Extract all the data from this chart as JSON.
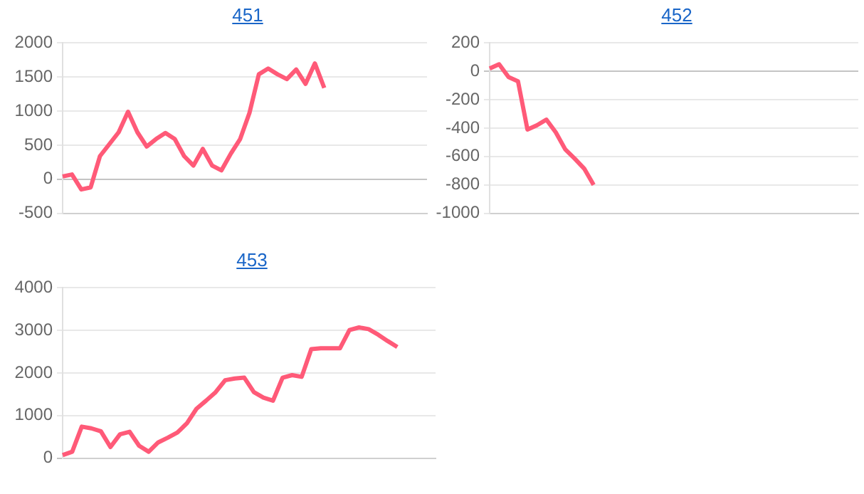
{
  "chart_data": [
    {
      "type": "line",
      "title": "451",
      "categories": [
        null,
        null,
        null,
        null,
        null,
        null,
        null,
        null,
        null,
        null,
        null,
        null,
        null,
        null,
        null,
        null,
        null,
        null,
        null,
        null,
        null,
        null,
        null,
        null,
        null,
        null,
        null,
        null,
        null,
        null,
        null,
        null,
        null,
        null,
        null,
        null,
        null,
        null,
        null,
        null
      ],
      "values": [
        40,
        70,
        -150,
        -120,
        340,
        515,
        690,
        990,
        690,
        480,
        590,
        680,
        590,
        340,
        200,
        445,
        200,
        130,
        375,
        590,
        975,
        1540,
        1625,
        1540,
        1470,
        1610,
        1400,
        1700,
        1340,
        null,
        null,
        null,
        null,
        null,
        null,
        null,
        null,
        null,
        null,
        null
      ],
      "color": "#ff5a78",
      "ylim": [
        -500,
        2000
      ],
      "yticks": [
        -500,
        0,
        500,
        1000,
        1500,
        2000
      ],
      "grid": "y",
      "tick_labels": "y",
      "marker": "none"
    },
    {
      "type": "line",
      "title": "452",
      "categories": [
        null,
        null,
        null,
        null,
        null,
        null,
        null,
        null,
        null,
        null,
        null,
        null,
        null,
        null,
        null,
        null,
        null,
        null,
        null,
        null,
        null,
        null,
        null,
        null,
        null,
        null,
        null,
        null,
        null,
        null,
        null,
        null,
        null,
        null,
        null,
        null,
        null,
        null,
        null,
        null
      ],
      "values": [
        20,
        50,
        -40,
        -70,
        -410,
        -380,
        -340,
        -430,
        -550,
        -615,
        -685,
        -800,
        null,
        null,
        null,
        null,
        null,
        null,
        null,
        null,
        null,
        null,
        null,
        null,
        null,
        null,
        null,
        null,
        null,
        null,
        null,
        null,
        null,
        null,
        null,
        null,
        null,
        null,
        null,
        null
      ],
      "color": "#ff5a78",
      "ylim": [
        -1000,
        200
      ],
      "yticks": [
        -1000,
        -800,
        -600,
        -400,
        -200,
        0,
        200
      ],
      "grid": "y",
      "tick_labels": "y",
      "marker": "none"
    },
    {
      "type": "line",
      "title": "453",
      "categories": [
        null,
        null,
        null,
        null,
        null,
        null,
        null,
        null,
        null,
        null,
        null,
        null,
        null,
        null,
        null,
        null,
        null,
        null,
        null,
        null,
        null,
        null,
        null,
        null,
        null,
        null,
        null,
        null,
        null,
        null,
        null,
        null,
        null,
        null,
        null,
        null,
        null,
        null,
        null,
        null
      ],
      "values": [
        70,
        150,
        740,
        700,
        630,
        260,
        560,
        620,
        290,
        150,
        370,
        480,
        600,
        820,
        1160,
        1350,
        1550,
        1830,
        1870,
        1890,
        1550,
        1420,
        1350,
        1890,
        1950,
        1910,
        2560,
        2580,
        2580,
        2580,
        3010,
        3070,
        3030,
        2900,
        2750,
        2610,
        null,
        null,
        null,
        null
      ],
      "color": "#ff5a78",
      "ylim": [
        0,
        4000
      ],
      "yticks": [
        0,
        1000,
        2000,
        3000,
        4000
      ],
      "grid": "y",
      "tick_labels": "y",
      "marker": "none"
    }
  ]
}
